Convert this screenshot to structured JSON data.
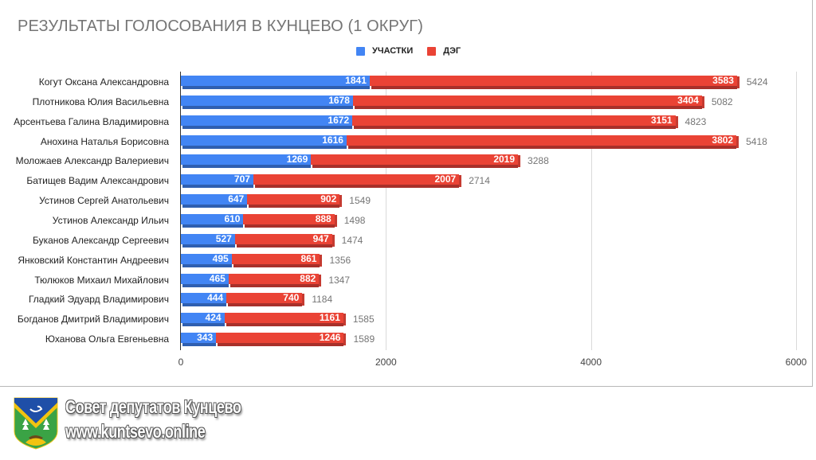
{
  "chart_data": {
    "type": "bar",
    "orientation": "horizontal",
    "stacked": true,
    "title": "РЕЗУЛЬТАТЫ ГОЛОСОВАНИЯ В КУНЦЕВО (1 ОКРУГ)",
    "xlabel": "",
    "ylabel": "",
    "xlim": [
      0,
      6000
    ],
    "x_ticks": [
      "0",
      "2000",
      "4000",
      "6000"
    ],
    "grid": true,
    "legend_position": "top",
    "categories": [
      "Когут Оксана Александровна",
      "Плотникова Юлия Васильевна",
      "Арсентьева Галина Владимировна",
      "Анохина Наталья Борисовна",
      "Моложаев Александр Валериевич",
      "Батищев Вадим Александрович",
      "Устинов Сергей Анатольевич",
      "Устинов Александр Ильич",
      "Буканов Александр Сергеевич",
      "Янковский Константин Андреевич",
      "Тюлюков Михаил Михайлович",
      "Гладкий Эдуард Владимирович",
      "Богданов Дмитрий Владимирович",
      "Юханова Ольга Евгеньевна"
    ],
    "series": [
      {
        "name": "УЧАСТКИ",
        "color": "#4285f4",
        "values": [
          1841,
          1678,
          1672,
          1616,
          1269,
          707,
          647,
          610,
          527,
          495,
          465,
          444,
          424,
          343
        ]
      },
      {
        "name": "ДЭГ",
        "color": "#ea4335",
        "values": [
          3583,
          3404,
          3151,
          3802,
          2019,
          2007,
          902,
          888,
          947,
          861,
          882,
          740,
          1161,
          1246
        ]
      }
    ],
    "totals": [
      5424,
      5082,
      4823,
      5418,
      3288,
      2714,
      1549,
      1498,
      1474,
      1356,
      1347,
      1184,
      1585,
      1589
    ]
  },
  "footer": {
    "org_name": "Совет депутатов Кунцево",
    "website": "www.kuntsevo.online"
  }
}
